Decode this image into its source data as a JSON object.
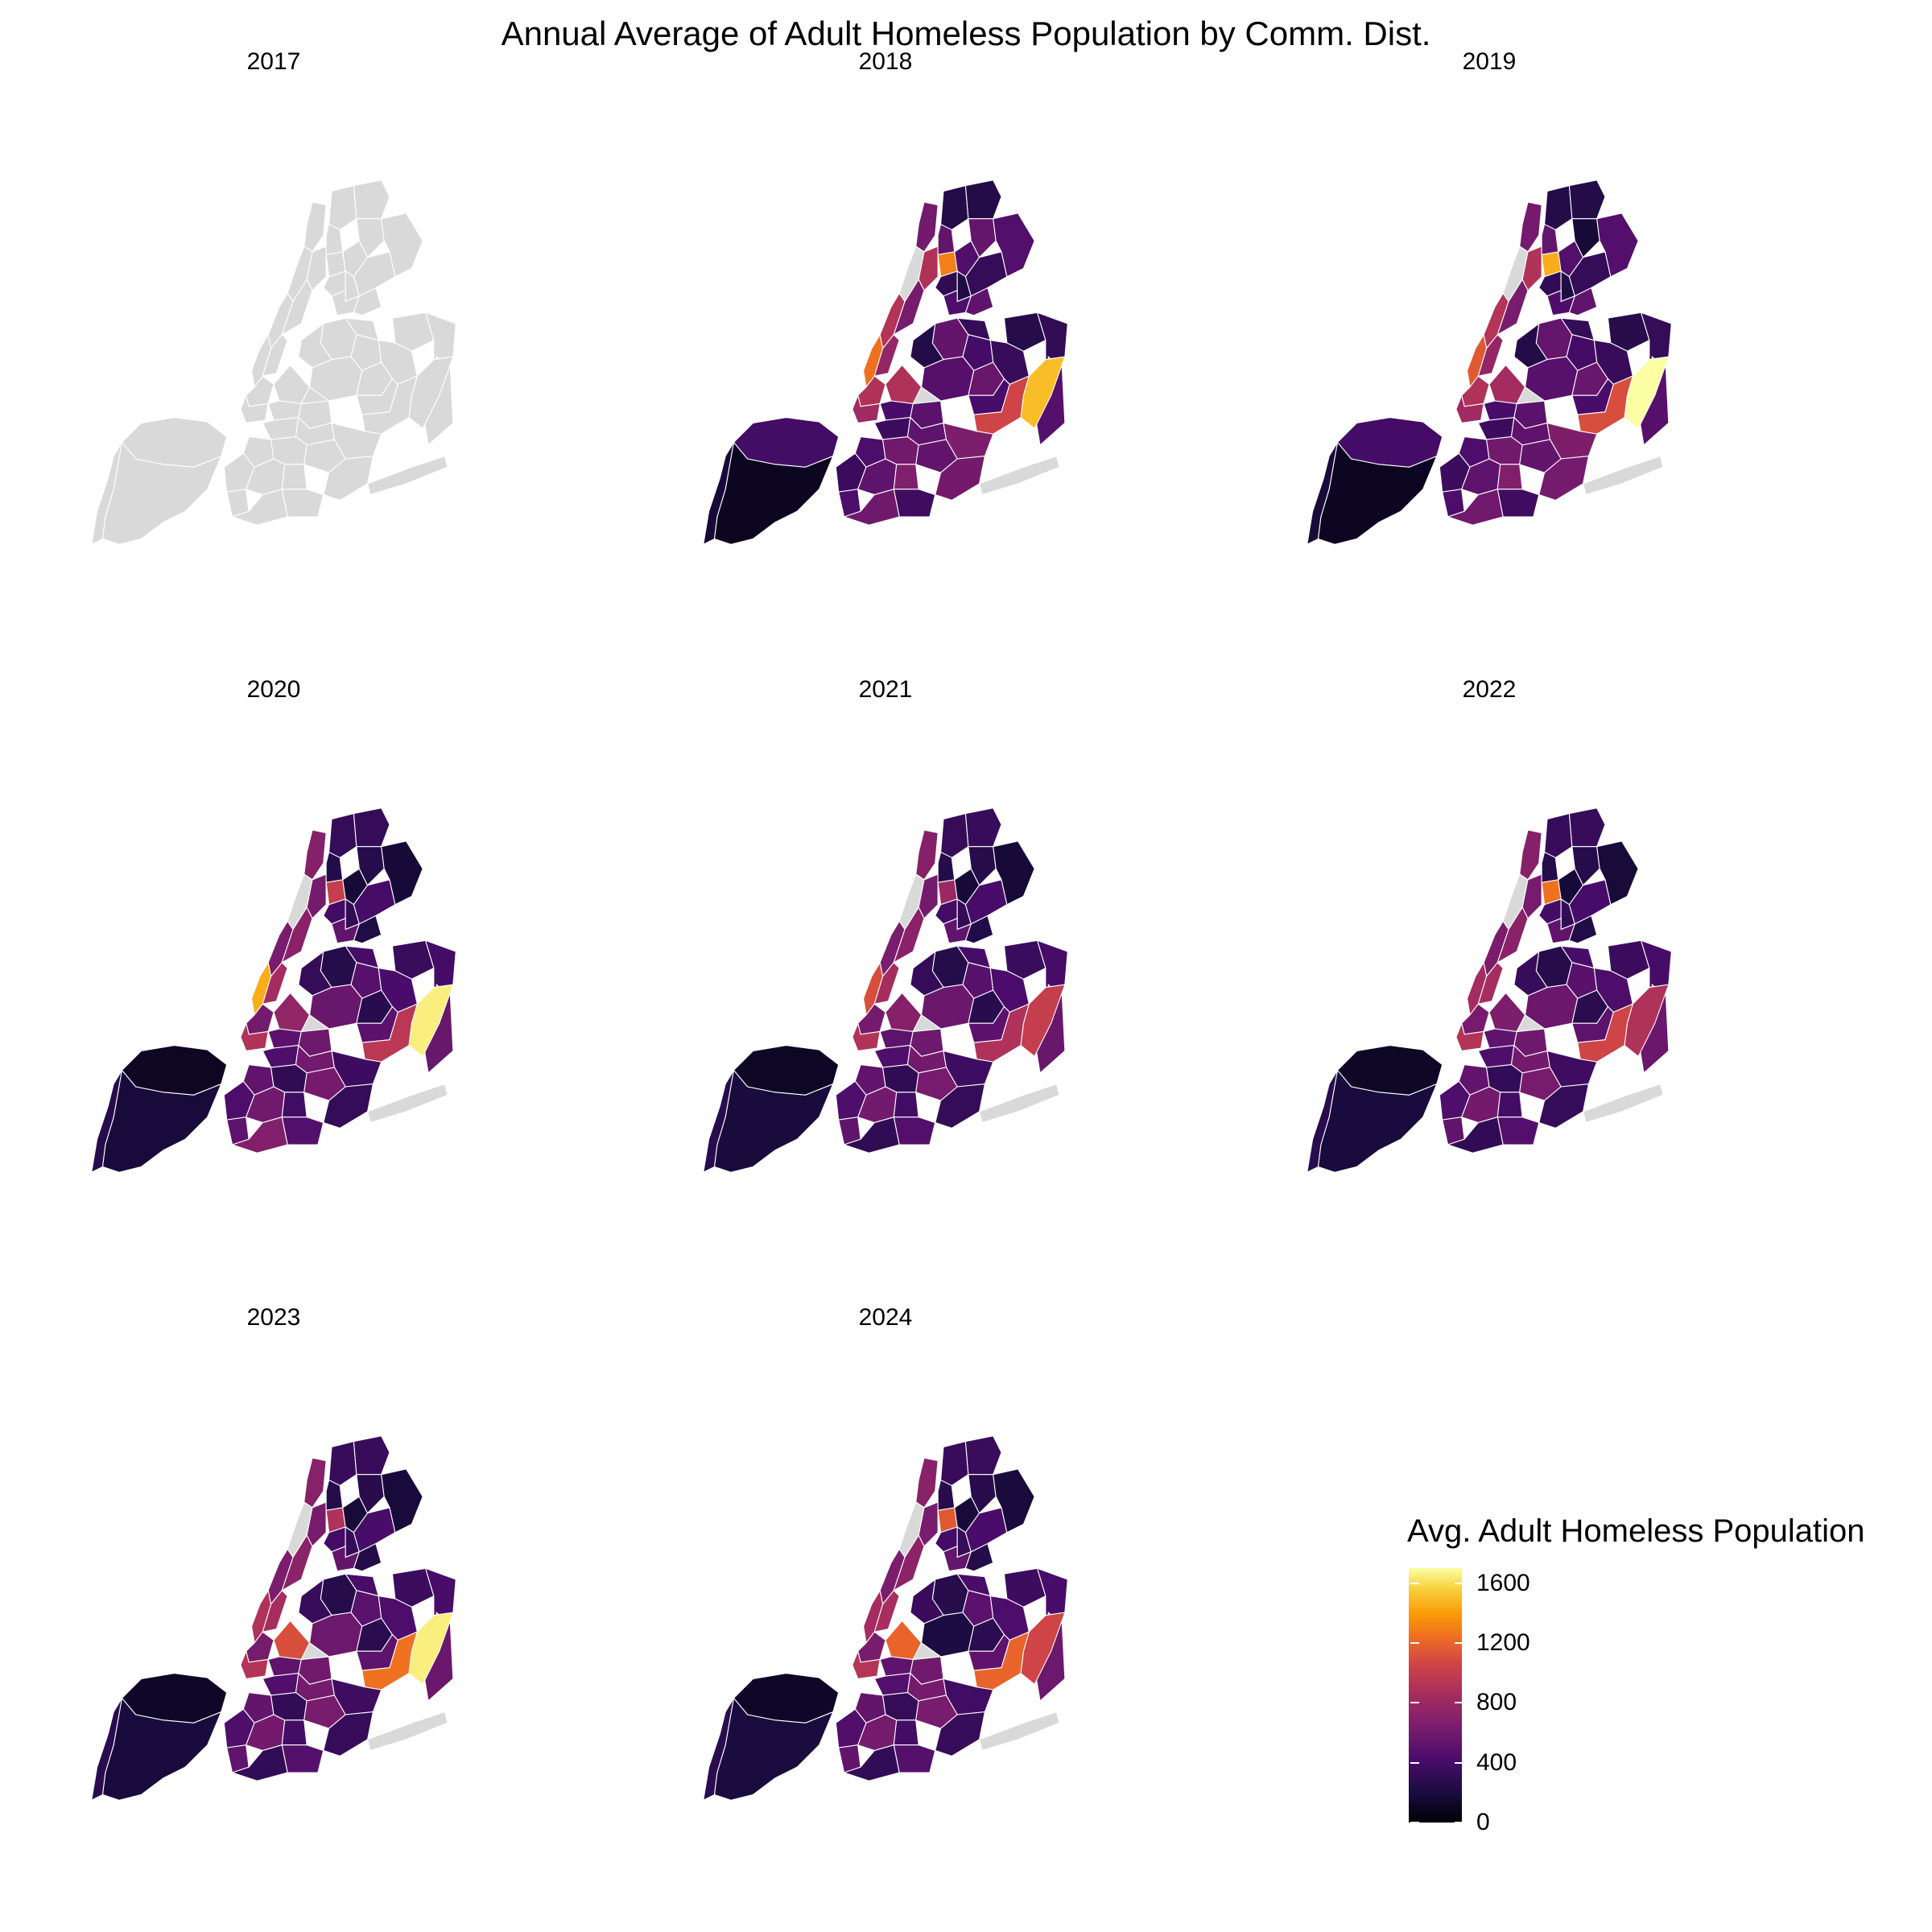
{
  "title": "Annual Average of Adult Homeless Population by Comm. Dist.",
  "legend": {
    "title": "Avg. Adult Homeless Population",
    "ticks": [
      {
        "label": "1600",
        "value": 1600
      },
      {
        "label": "1200",
        "value": 1200
      },
      {
        "label": "800",
        "value": 800
      },
      {
        "label": "400",
        "value": 400
      },
      {
        "label": "0",
        "value": 0
      }
    ],
    "scale_max": 1700,
    "palette": "inferno",
    "missing_color": "#d9d9d9"
  },
  "panels": [
    {
      "year": "2017",
      "has_data": false
    },
    {
      "year": "2018",
      "has_data": true
    },
    {
      "year": "2019",
      "has_data": true
    },
    {
      "year": "2020",
      "has_data": true
    },
    {
      "year": "2021",
      "has_data": true
    },
    {
      "year": "2022",
      "has_data": true
    },
    {
      "year": "2023",
      "has_data": true
    },
    {
      "year": "2024",
      "has_data": true
    }
  ],
  "chart_data": {
    "type": "choropleth",
    "title": "Annual Average of Adult Homeless Population by Comm. Dist.",
    "value_label": "Avg. Adult Homeless Population",
    "scale_range": [
      0,
      1700
    ],
    "missing_data_color": "#d9d9d9",
    "highlighted_districts": {
      "2017": "no data",
      "2018": {
        "Queens east (Jamaica)": 1500,
        "Queens south (Ozone Park)": 1050,
        "Manhattan west midtown": 1250,
        "Bronx central": 1300,
        "Brooklyn north": 900
      },
      "2019": {
        "Queens east (Jamaica)": 1700,
        "Queens south (Ozone Park)": 1100,
        "Manhattan west midtown": 1150,
        "Bronx central": 1450,
        "Brooklyn north": 850
      },
      "2020": {
        "Queens east (Jamaica)": 1650,
        "Queens south (Ozone Park)": 950,
        "Manhattan west midtown": 1450,
        "Bronx central": 1000,
        "Brooklyn north": 750
      },
      "2021": {
        "Queens east (Jamaica)": 1000,
        "Queens south (Ozone Park)": 900,
        "Manhattan west midtown": 1100,
        "Bronx central": 800,
        "Brooklyn north": 700
      },
      "2022": {
        "Queens east (Jamaica)": 900,
        "Queens south (Ozone Park)": 1050,
        "Manhattan west midtown": 850,
        "Bronx central": 1250,
        "Brooklyn north": 650
      },
      "2023": {
        "Queens east (Jamaica)": 1650,
        "Queens south (Ozone Park)": 1250,
        "Manhattan west midtown": 900,
        "Bronx central": 900,
        "Brooklyn north": 1100
      },
      "2024": {
        "Queens east (Jamaica)": 1050,
        "Queens south (Ozone Park)": 1200,
        "Manhattan west midtown": 850,
        "Bronx central": 1150,
        "Brooklyn north": 1200
      }
    }
  }
}
